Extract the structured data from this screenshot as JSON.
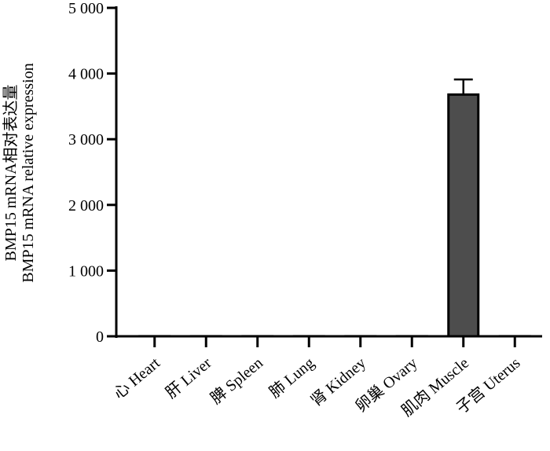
{
  "chart_data": {
    "type": "bar",
    "ylabel_lines": [
      "BMP15 mRNA相对表达量",
      "BMP15 mRNA relative expression"
    ],
    "categories": [
      "心 Heart",
      "肝 Liver",
      "脾 Spleen",
      "肺 Lung",
      "肾 Kidney",
      "卵巢 Ovary",
      "肌肉 Muscle",
      "子宫 Uterus"
    ],
    "values": [
      1,
      1,
      1,
      1,
      1,
      1,
      3680,
      1
    ],
    "errors": [
      null,
      null,
      null,
      null,
      null,
      null,
      230,
      null
    ],
    "color": "#4d4d4d",
    "ylim": [
      0,
      5000
    ],
    "yticks": [
      {
        "value": 0,
        "label": "0"
      },
      {
        "value": 1000,
        "label": "1 000"
      },
      {
        "value": 2000,
        "label": "2 000"
      },
      {
        "value": 3000,
        "label": "3 000"
      },
      {
        "value": 4000,
        "label": "4 000"
      },
      {
        "value": 5000,
        "label": "5 000"
      }
    ]
  }
}
